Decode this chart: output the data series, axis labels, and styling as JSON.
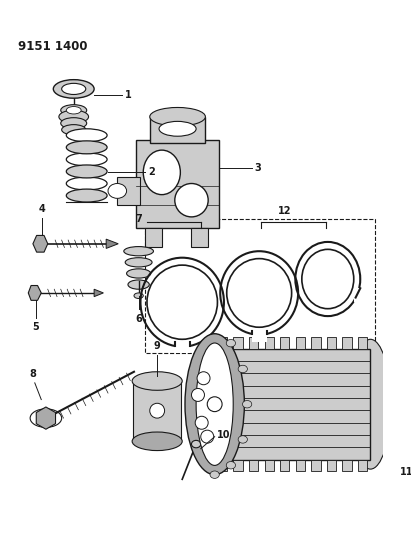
{
  "title": "9151 1400",
  "bg_color": "#ffffff",
  "lc": "#1a1a1a",
  "fig_width": 4.11,
  "fig_height": 5.33,
  "dpi": 100,
  "gray_light": "#cccccc",
  "gray_mid": "#aaaaaa",
  "gray_dark": "#888888"
}
